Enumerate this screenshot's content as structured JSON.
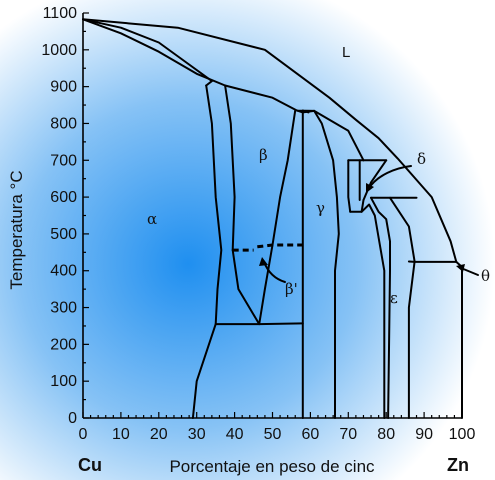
{
  "chart": {
    "y_axis_title": "Temperatura °C",
    "x_axis_title": "Porcentaje en peso de cinc",
    "y_ticks": [
      0,
      100,
      200,
      300,
      400,
      500,
      600,
      700,
      800,
      900,
      1000,
      1100
    ],
    "x_ticks": [
      0,
      10,
      20,
      30,
      40,
      50,
      60,
      70,
      80,
      90,
      100
    ],
    "left_element": "Cu",
    "right_element": "Zn"
  },
  "phases": {
    "liquid": "L",
    "alpha": "α",
    "beta": "β",
    "beta_prime": "β'",
    "gamma": "γ",
    "delta": "δ",
    "epsilon": "ε",
    "theta": "θ"
  },
  "colors": {
    "background_center": "#1f8ff0",
    "background_edge": "#ffffff",
    "lines": "#000000"
  },
  "chart_data": {
    "type": "phase-diagram",
    "xlabel": "Porcentaje en peso de cinc",
    "ylabel": "Temperatura °C",
    "xlim": [
      0,
      100
    ],
    "ylim": [
      0,
      1100
    ],
    "boundaries": [
      {
        "name": "liquidus-alpha",
        "points": [
          [
            0,
            1083
          ],
          [
            10,
            1045
          ],
          [
            20,
            995
          ],
          [
            30,
            935
          ],
          [
            37.5,
            903
          ]
        ]
      },
      {
        "name": "solidus-alpha",
        "points": [
          [
            0,
            1083
          ],
          [
            10,
            1060
          ],
          [
            20,
            1020
          ],
          [
            28,
            960
          ],
          [
            34,
            915
          ],
          [
            32.5,
            903
          ]
        ]
      },
      {
        "name": "alpha-solvus",
        "points": [
          [
            32.5,
            903
          ],
          [
            34,
            800
          ],
          [
            35,
            600
          ],
          [
            36.5,
            456
          ],
          [
            35.5,
            350
          ],
          [
            35,
            255
          ],
          [
            30,
            100
          ],
          [
            29,
            0
          ]
        ]
      },
      {
        "name": "beta-left",
        "points": [
          [
            37.5,
            903
          ],
          [
            39,
            800
          ],
          [
            40,
            600
          ],
          [
            39.5,
            456
          ]
        ]
      },
      {
        "name": "beta-prime-left",
        "points": [
          [
            39.5,
            456
          ],
          [
            41,
            350
          ],
          [
            46.5,
            255
          ]
        ]
      },
      {
        "name": "beta-right-upper",
        "points": [
          [
            50,
            470
          ],
          [
            52,
            600
          ],
          [
            54,
            700
          ],
          [
            56,
            835
          ]
        ]
      },
      {
        "name": "beta-right-lower",
        "points": [
          [
            50,
            470
          ],
          [
            48,
            350
          ],
          [
            46.5,
            255
          ]
        ]
      },
      {
        "name": "liquidus-beta",
        "points": [
          [
            37.5,
            903
          ],
          [
            50,
            870
          ],
          [
            56.5,
            835
          ],
          [
            61,
            834
          ]
        ]
      },
      {
        "name": "liquidus-upper",
        "points": [
          [
            0,
            1083
          ],
          [
            25,
            1060
          ],
          [
            48,
            1000
          ],
          [
            65,
            870
          ],
          [
            72,
            810
          ],
          [
            78,
            760
          ],
          [
            83,
            705
          ],
          [
            92,
            600
          ],
          [
            97,
            480
          ],
          [
            98.5,
            424
          ]
        ]
      },
      {
        "name": "beta-liquid-upper",
        "points": [
          [
            56.5,
            835
          ],
          [
            58,
            830
          ],
          [
            61,
            834
          ]
        ]
      },
      {
        "name": "gamma-left",
        "points": [
          [
            58,
            835
          ],
          [
            58,
            700
          ],
          [
            58,
            470
          ],
          [
            58,
            255
          ],
          [
            58,
            0
          ]
        ]
      },
      {
        "name": "gamma-left-upper",
        "points": [
          [
            58,
            835
          ],
          [
            59.5,
            830
          ]
        ]
      },
      {
        "name": "gamma-right",
        "points": [
          [
            61,
            834
          ],
          [
            63,
            800
          ],
          [
            66,
            700
          ],
          [
            67,
            600
          ],
          [
            67.5,
            500
          ],
          [
            66.5,
            400
          ],
          [
            66.5,
            0
          ]
        ]
      },
      {
        "name": "gamma-peritectic",
        "points": [
          [
            61,
            834
          ],
          [
            70,
            780
          ],
          [
            74,
            700
          ]
        ]
      },
      {
        "name": "delta-left",
        "points": [
          [
            70,
            700
          ],
          [
            70,
            600
          ],
          [
            70.5,
            560
          ]
        ]
      },
      {
        "name": "delta-top",
        "points": [
          [
            70,
            700
          ],
          [
            80,
            700
          ]
        ]
      },
      {
        "name": "delta-right",
        "points": [
          [
            80,
            700
          ],
          [
            76,
            640
          ],
          [
            74,
            592
          ]
        ]
      },
      {
        "name": "gamma-delta-bottom",
        "points": [
          [
            70.5,
            560
          ],
          [
            73.5,
            560
          ],
          [
            74,
            592
          ]
        ]
      },
      {
        "name": "gamma-right-lower",
        "points": [
          [
            73.5,
            560
          ],
          [
            75.5,
            580
          ],
          [
            77,
            550
          ],
          [
            79.5,
            400
          ],
          [
            79.5,
            0
          ]
        ]
      },
      {
        "name": "delta-eutectoid",
        "points": [
          [
            73,
            700
          ],
          [
            73,
            592
          ]
        ]
      },
      {
        "name": "epsilon-top",
        "points": [
          [
            76,
            598
          ],
          [
            81,
            598
          ],
          [
            88,
            598
          ]
        ]
      },
      {
        "name": "epsilon-left",
        "points": [
          [
            76,
            598
          ],
          [
            78,
            560
          ],
          [
            80,
            540
          ],
          [
            81,
            480
          ],
          [
            81,
            400
          ],
          [
            80.5,
            0
          ]
        ]
      },
      {
        "name": "epsilon-right",
        "points": [
          [
            81,
            598
          ],
          [
            86,
            520
          ],
          [
            87.5,
            425
          ],
          [
            86,
            300
          ],
          [
            86,
            0
          ]
        ]
      },
      {
        "name": "epsilon-eta-liquid",
        "points": [
          [
            86,
            425
          ],
          [
            87.5,
            424
          ],
          [
            97,
            424
          ],
          [
            98.5,
            424
          ]
        ]
      },
      {
        "name": "eta-solvus",
        "points": [
          [
            98.5,
            424
          ],
          [
            100,
            410
          ],
          [
            100,
            300
          ],
          [
            100,
            0
          ]
        ]
      },
      {
        "name": "alpha-beta-lower",
        "points": [
          [
            35,
            255
          ],
          [
            46.5,
            255
          ],
          [
            58,
            257
          ]
        ]
      }
    ],
    "ordering_dashes": [
      {
        "name": "beta-prime-order-left",
        "points": [
          [
            39.5,
            456
          ],
          [
            45,
            456
          ]
        ]
      },
      {
        "name": "beta-prime-order-right",
        "points": [
          [
            46,
            465
          ],
          [
            50,
            470
          ],
          [
            58,
            470
          ]
        ]
      }
    ]
  }
}
